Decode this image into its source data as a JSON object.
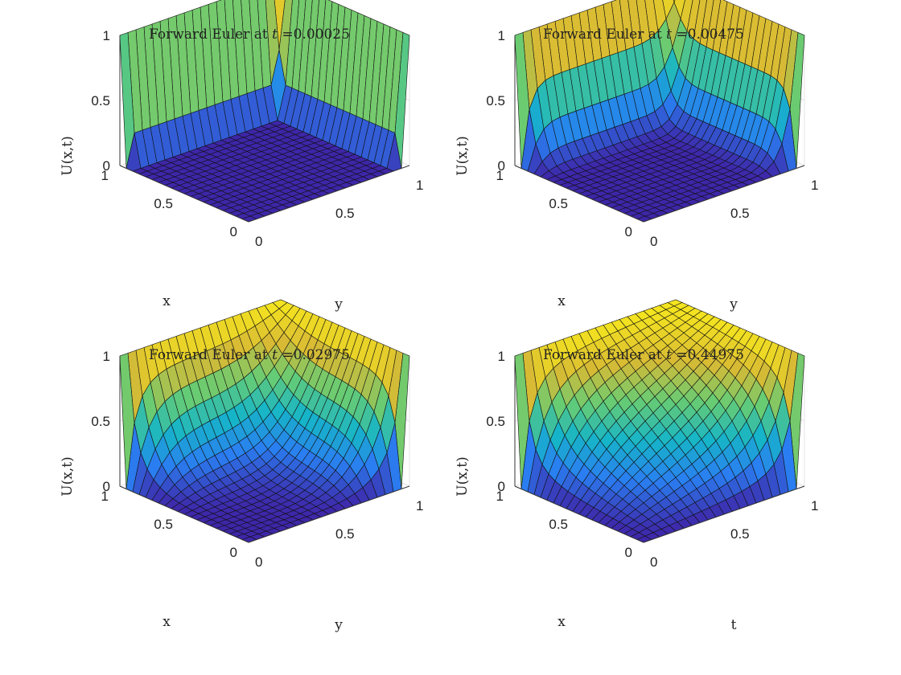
{
  "chart_data": [
    {
      "type": "surface",
      "title_prefix": "Forward Euler at ",
      "title_var": "t",
      "title_value": "=0.00025",
      "t": 0.00025,
      "zlabel": "U(x,t)",
      "xlabel": "x",
      "ylabel": "y",
      "xlim": [
        0,
        1
      ],
      "ylim": [
        0,
        1
      ],
      "zlim": [
        0,
        1
      ],
      "x_ticks": [
        "0",
        "0.5",
        "1"
      ],
      "y_ticks": [
        "0",
        "0.5",
        "1"
      ],
      "z_ticks": [
        "0",
        "0.5",
        "1"
      ],
      "boundary_condition": "U = 1 on the planes x = 1 and y = 1",
      "colormap": [
        "#3e26a8",
        "#2a7ef1",
        "#16b5c8",
        "#66cc74",
        "#d8ba34",
        "#f5e51f"
      ],
      "grid": true
    },
    {
      "type": "surface",
      "title_prefix": "Forward Euler at ",
      "title_var": "t",
      "title_value": "=0.00475",
      "t": 0.00475,
      "zlabel": "U(x,t)",
      "xlabel": "x",
      "ylabel": "y",
      "xlim": [
        0,
        1
      ],
      "ylim": [
        0,
        1
      ],
      "zlim": [
        0,
        1
      ],
      "x_ticks": [
        "0",
        "0.5",
        "1"
      ],
      "y_ticks": [
        "0",
        "0.5",
        "1"
      ],
      "z_ticks": [
        "0",
        "0.5",
        "1"
      ],
      "grid": true
    },
    {
      "type": "surface",
      "title_prefix": "Forward Euler at ",
      "title_var": "t",
      "title_value": "=0.02975",
      "t": 0.02975,
      "zlabel": "U(x,t)",
      "xlabel": "x",
      "ylabel": "y",
      "xlim": [
        0,
        1
      ],
      "ylim": [
        0,
        1
      ],
      "zlim": [
        0,
        1
      ],
      "x_ticks": [
        "0",
        "0.5",
        "1"
      ],
      "y_ticks": [
        "0",
        "0.5",
        "1"
      ],
      "z_ticks": [
        "0",
        "0.5",
        "1"
      ],
      "grid": true
    },
    {
      "type": "surface",
      "title_prefix": "Forward Euler at ",
      "title_var": "t",
      "title_value": "=0.44975",
      "t": 0.44975,
      "zlabel": "U(x,t)",
      "xlabel": "x",
      "ylabel": "t",
      "xlim": [
        0,
        1
      ],
      "ylim": [
        0,
        1
      ],
      "zlim": [
        0,
        1
      ],
      "x_ticks": [
        "0",
        "0.5",
        "1"
      ],
      "y_ticks": [
        "0",
        "0.5",
        "1"
      ],
      "z_ticks": [
        "0",
        "0.5",
        "1"
      ],
      "grid": true
    }
  ]
}
